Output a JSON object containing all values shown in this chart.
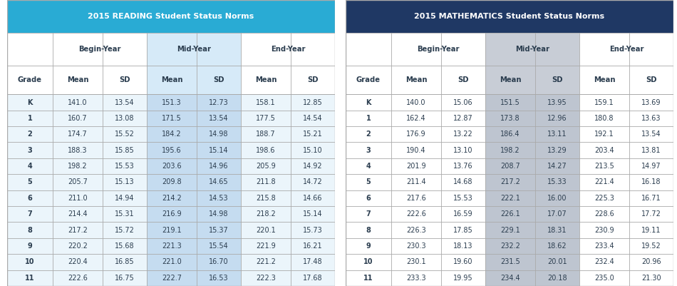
{
  "reading_title": "2015 READING Student Status Norms",
  "math_title": "2015 MATHEMATICS Student Status Norms",
  "reading_header_color": "#29ABD4",
  "math_header_color": "#1F3864",
  "reading_mid_col_color": "#D6EAF8",
  "math_mid_col_color": "#C8CDD6",
  "reading_row_color": "#EBF5FB",
  "math_row_color": "#FFFFFF",
  "reading_data_mid_col": "#C5DCF0",
  "math_data_mid_col": "#BEC5D0",
  "border_color": "#AAAAAA",
  "text_color": "#2C3E50",
  "grades": [
    "K",
    "1",
    "2",
    "3",
    "4",
    "5",
    "6",
    "7",
    "8",
    "9",
    "10",
    "11"
  ],
  "reading_data": [
    [
      141.0,
      13.54,
      151.3,
      12.73,
      158.1,
      12.85
    ],
    [
      160.7,
      13.08,
      171.5,
      13.54,
      177.5,
      14.54
    ],
    [
      174.7,
      15.52,
      184.2,
      14.98,
      188.7,
      15.21
    ],
    [
      188.3,
      15.85,
      195.6,
      15.14,
      198.6,
      15.1
    ],
    [
      198.2,
      15.53,
      203.6,
      14.96,
      205.9,
      14.92
    ],
    [
      205.7,
      15.13,
      209.8,
      14.65,
      211.8,
      14.72
    ],
    [
      211.0,
      14.94,
      214.2,
      14.53,
      215.8,
      14.66
    ],
    [
      214.4,
      15.31,
      216.9,
      14.98,
      218.2,
      15.14
    ],
    [
      217.2,
      15.72,
      219.1,
      15.37,
      220.1,
      15.73
    ],
    [
      220.2,
      15.68,
      221.3,
      15.54,
      221.9,
      16.21
    ],
    [
      220.4,
      16.85,
      221.0,
      16.7,
      221.2,
      17.48
    ],
    [
      222.6,
      16.75,
      222.7,
      16.53,
      222.3,
      17.68
    ]
  ],
  "math_data": [
    [
      140.0,
      15.06,
      151.5,
      13.95,
      159.1,
      13.69
    ],
    [
      162.4,
      12.87,
      173.8,
      12.96,
      180.8,
      13.63
    ],
    [
      176.9,
      13.22,
      186.4,
      13.11,
      192.1,
      13.54
    ],
    [
      190.4,
      13.1,
      198.2,
      13.29,
      203.4,
      13.81
    ],
    [
      201.9,
      13.76,
      208.7,
      14.27,
      213.5,
      14.97
    ],
    [
      211.4,
      14.68,
      217.2,
      15.33,
      221.4,
      16.18
    ],
    [
      217.6,
      15.53,
      222.1,
      16.0,
      225.3,
      16.71
    ],
    [
      222.6,
      16.59,
      226.1,
      17.07,
      228.6,
      17.72
    ],
    [
      226.3,
      17.85,
      229.1,
      18.31,
      230.9,
      19.11
    ],
    [
      230.3,
      18.13,
      232.2,
      18.62,
      233.4,
      19.52
    ],
    [
      230.1,
      19.6,
      231.5,
      20.01,
      232.4,
      20.96
    ],
    [
      233.3,
      19.95,
      234.4,
      20.18,
      235.0,
      21.3
    ]
  ]
}
